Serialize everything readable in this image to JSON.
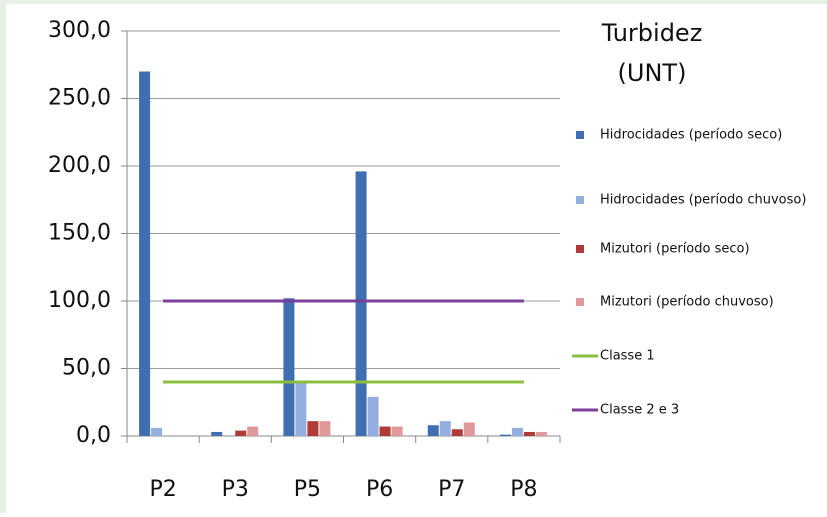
{
  "chart_data": {
    "type": "bar",
    "title": "Turbidez",
    "subtitle": "(UNT)",
    "categories": [
      "P2",
      "P3",
      "P5",
      "P6",
      "P7",
      "P8"
    ],
    "series": [
      {
        "name": "Hidrocidades (período seco)",
        "type": "bar",
        "color": "#3f6fb0",
        "values": [
          270,
          3,
          102,
          196,
          8,
          1
        ]
      },
      {
        "name": "Hidrocidades (período chuvoso)",
        "type": "bar",
        "color": "#95aee0",
        "values": [
          6,
          0,
          40,
          29,
          11,
          6
        ]
      },
      {
        "name": "Mizutori (período seco)",
        "type": "bar",
        "color": "#b03a38",
        "values": [
          0,
          4,
          11,
          7,
          5,
          3
        ]
      },
      {
        "name": "Mizutori (período chuvoso)",
        "type": "bar",
        "color": "#e0999a",
        "values": [
          0,
          7,
          11,
          7,
          10,
          3
        ]
      },
      {
        "name": "Classe 1",
        "type": "line",
        "color": "#8cbd3d",
        "values": [
          40,
          40,
          40,
          40,
          40,
          40
        ]
      },
      {
        "name": "Classe 2 e 3",
        "type": "line",
        "color": "#7a3f9a",
        "values": [
          100,
          100,
          100,
          100,
          100,
          100
        ]
      }
    ],
    "ylim": [
      0,
      300
    ],
    "yticks": [
      {
        "value": 0,
        "label": "0,0"
      },
      {
        "value": 50,
        "label": "50,0"
      },
      {
        "value": 100,
        "label": "100,0"
      },
      {
        "value": 150,
        "label": "150,0"
      },
      {
        "value": 200,
        "label": "200,0"
      },
      {
        "value": 250,
        "label": "250,0"
      },
      {
        "value": 300,
        "label": "300,0"
      }
    ],
    "grid": true,
    "legend": "right"
  }
}
